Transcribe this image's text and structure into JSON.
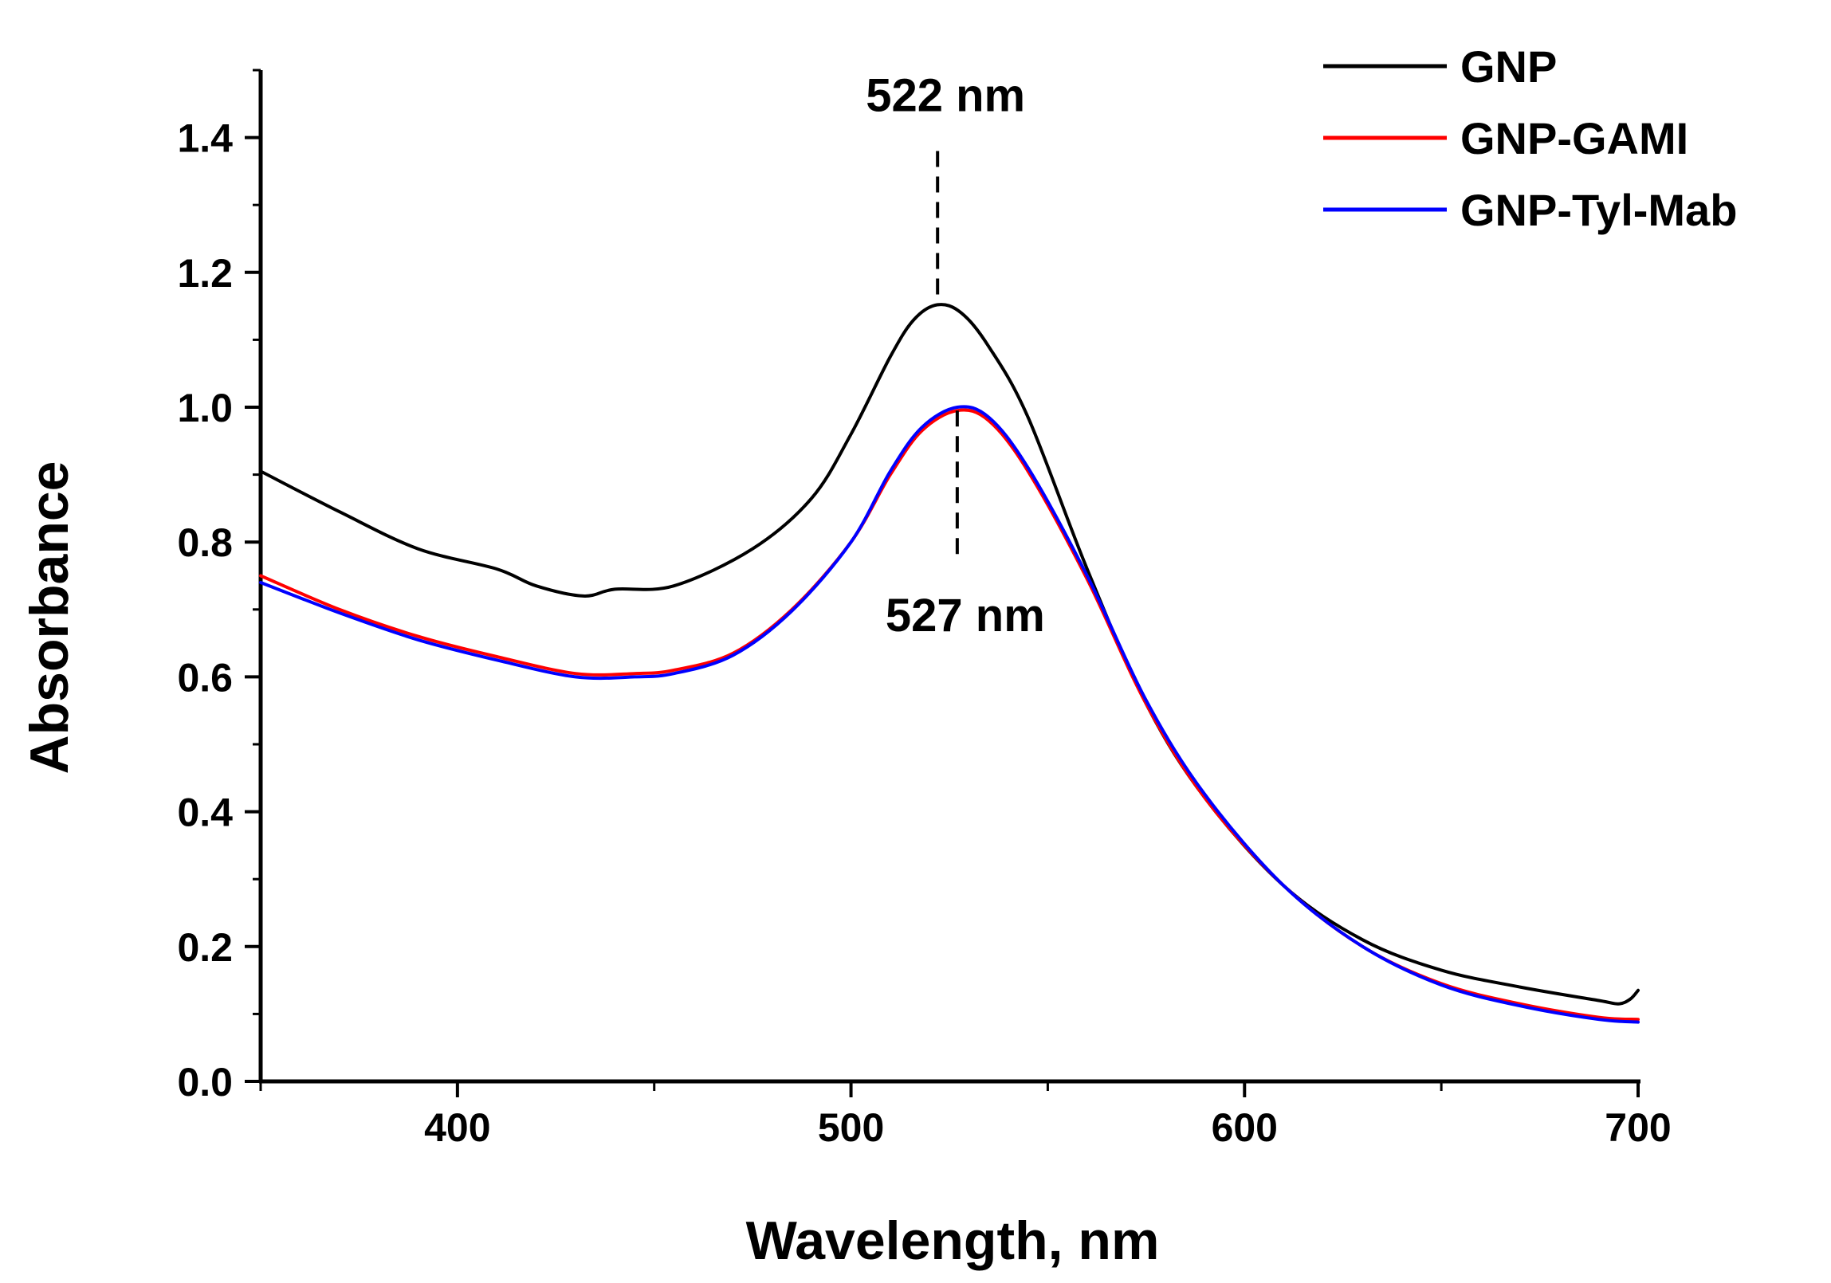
{
  "chart_data": {
    "type": "line",
    "title": "",
    "xlabel": "Wavelength, nm",
    "ylabel": "Absorbance",
    "xlim": [
      350,
      700
    ],
    "ylim": [
      0.0,
      1.5
    ],
    "x_ticks": [
      400,
      500,
      600,
      700
    ],
    "x_tick_labels": [
      "400",
      "500",
      "600",
      "700"
    ],
    "y_ticks": [
      0.0,
      0.2,
      0.4,
      0.6,
      0.8,
      1.0,
      1.2,
      1.4
    ],
    "y_tick_labels": [
      "0.0",
      "0.2",
      "0.4",
      "0.6",
      "0.8",
      "1.0",
      "1.2",
      "1.4"
    ],
    "grid": false,
    "legend_position": "top-right",
    "series": [
      {
        "name": "GNP",
        "color": "#000000",
        "x": [
          350,
          370,
          390,
          410,
          420,
          432,
          440,
          455,
          475,
          490,
          500,
          510,
          516,
          522,
          528,
          535,
          545,
          560,
          575,
          590,
          610,
          630,
          650,
          670,
          690,
          695,
          698,
          700
        ],
        "y": [
          0.905,
          0.845,
          0.79,
          0.76,
          0.735,
          0.72,
          0.73,
          0.735,
          0.79,
          0.865,
          0.96,
          1.075,
          1.13,
          1.152,
          1.14,
          1.09,
          0.985,
          0.76,
          0.56,
          0.42,
          0.29,
          0.21,
          0.165,
          0.14,
          0.12,
          0.115,
          0.122,
          0.135
        ]
      },
      {
        "name": "GNP-GAMI",
        "color": "#ff0000",
        "x": [
          350,
          370,
          390,
          410,
          430,
          445,
          455,
          470,
          485,
          500,
          510,
          518,
          527,
          535,
          545,
          560,
          575,
          590,
          610,
          630,
          650,
          670,
          690,
          700
        ],
        "y": [
          0.75,
          0.7,
          0.66,
          0.63,
          0.605,
          0.605,
          0.61,
          0.635,
          0.7,
          0.8,
          0.9,
          0.965,
          0.995,
          0.98,
          0.905,
          0.745,
          0.56,
          0.42,
          0.29,
          0.2,
          0.145,
          0.115,
          0.095,
          0.092
        ]
      },
      {
        "name": "GNP-Tyl-Mab",
        "color": "#0000ff",
        "x": [
          350,
          370,
          390,
          410,
          430,
          445,
          455,
          470,
          485,
          500,
          510,
          518,
          527,
          535,
          545,
          560,
          575,
          590,
          610,
          630,
          650,
          670,
          690,
          700
        ],
        "y": [
          0.74,
          0.695,
          0.655,
          0.625,
          0.6,
          0.6,
          0.605,
          0.632,
          0.698,
          0.8,
          0.905,
          0.97,
          1.0,
          0.985,
          0.91,
          0.75,
          0.565,
          0.425,
          0.29,
          0.2,
          0.143,
          0.112,
          0.092,
          0.088
        ]
      }
    ],
    "annotations": [
      {
        "label": "522 nm",
        "x": 522,
        "y_from": 1.15,
        "y_to": 1.38,
        "text_side": "above"
      },
      {
        "label": "527 nm",
        "x": 527,
        "y_from": 0.995,
        "y_to": 0.78,
        "text_side": "below"
      }
    ]
  }
}
